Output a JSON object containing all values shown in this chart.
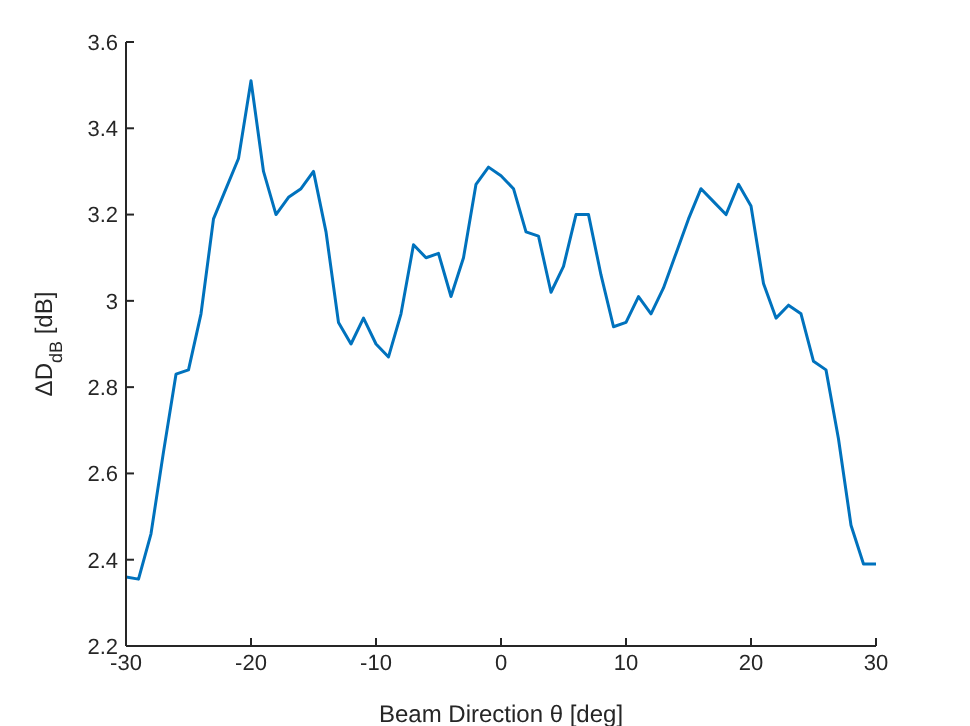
{
  "chart_data": {
    "type": "line",
    "xlabel": "Beam Direction θ [deg]",
    "ylabel": "ΔD$_{dB}$ [dB]",
    "x": [
      -30,
      -29,
      -28,
      -27,
      -26,
      -25,
      -24,
      -23,
      -22,
      -21,
      -20,
      -19,
      -18,
      -17,
      -16,
      -15,
      -14,
      -13,
      -12,
      -11,
      -10,
      -9,
      -8,
      -7,
      -6,
      -5,
      -4,
      -3,
      -2,
      -1,
      0,
      1,
      2,
      3,
      4,
      5,
      6,
      7,
      8,
      9,
      10,
      11,
      12,
      13,
      14,
      15,
      16,
      17,
      18,
      19,
      20,
      21,
      22,
      23,
      24,
      25,
      26,
      27,
      28,
      29,
      30
    ],
    "series": [
      {
        "color": "#0072bd",
        "values": [
          2.36,
          2.355,
          2.46,
          2.65,
          2.83,
          2.84,
          2.97,
          3.19,
          3.26,
          3.33,
          3.51,
          3.3,
          3.2,
          3.24,
          3.26,
          3.3,
          3.16,
          2.95,
          2.9,
          2.96,
          2.9,
          2.87,
          2.97,
          3.13,
          3.1,
          3.11,
          3.01,
          3.1,
          3.27,
          3.31,
          3.29,
          3.26,
          3.16,
          3.15,
          3.02,
          3.08,
          3.2,
          3.2,
          3.06,
          2.94,
          2.95,
          3.01,
          2.97,
          3.03,
          3.11,
          3.19,
          3.26,
          3.23,
          3.2,
          3.27,
          3.22,
          3.04,
          2.96,
          2.99,
          2.97,
          2.86,
          2.84,
          2.68,
          2.48,
          2.39,
          2.39
        ]
      }
    ],
    "xlim": [
      -30,
      30
    ],
    "xticks": [
      -30,
      -20,
      -10,
      0,
      10,
      20,
      30
    ],
    "ylim": [
      2.2,
      3.6
    ],
    "yticks": [
      2.2,
      2.4,
      2.6,
      2.8,
      3,
      3.2,
      3.4,
      3.6
    ],
    "grid": false,
    "legend": false,
    "marker": "none",
    "line_style": "solid"
  }
}
